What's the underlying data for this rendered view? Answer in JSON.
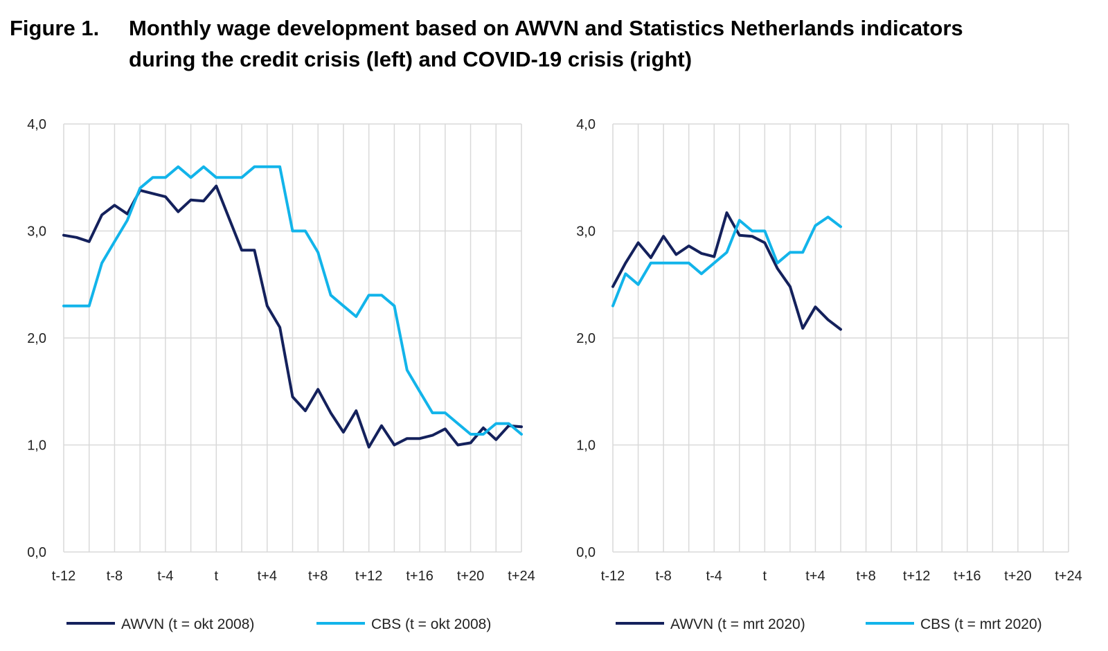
{
  "figure": {
    "label": "Figure 1.",
    "title_line1": "Monthly wage development based on AWVN and Statistics Netherlands indicators",
    "title_line2": "during the credit crisis (left) and COVID-19 crisis (right)"
  },
  "colors": {
    "awvn": "#14215c",
    "cbs": "#12b4ea",
    "grid": "#d9d9d9"
  },
  "chart_data": [
    {
      "type": "line",
      "title": "credit crisis",
      "ylim": [
        0,
        4
      ],
      "yticks": [
        "0,0",
        "1,0",
        "2,0",
        "3,0",
        "4,0"
      ],
      "xlim": [
        -12,
        24
      ],
      "xtick_labels": [
        "t-12",
        "t-8",
        "t-4",
        "t",
        "t+4",
        "t+8",
        "t+12",
        "t+16",
        "t+20",
        "t+24"
      ],
      "grid": true,
      "legend_position": "bottom",
      "series": [
        {
          "name": "AWVN (t = okt 2008)",
          "color": "#14215c",
          "x": [
            -12,
            -11,
            -10,
            -9,
            -8,
            -7,
            -6,
            -5,
            -4,
            -3,
            -2,
            -1,
            0,
            1,
            2,
            3,
            4,
            5,
            6,
            7,
            8,
            9,
            10,
            11,
            12,
            13,
            14,
            15,
            16,
            17,
            18,
            19,
            20,
            21,
            22,
            23,
            24
          ],
          "values": [
            2.96,
            2.94,
            2.9,
            3.15,
            3.24,
            3.16,
            3.38,
            3.35,
            3.32,
            3.18,
            3.29,
            3.28,
            3.42,
            3.12,
            2.82,
            2.82,
            2.3,
            2.1,
            1.45,
            1.32,
            1.52,
            1.3,
            1.12,
            1.32,
            0.98,
            1.18,
            1.0,
            1.06,
            1.06,
            1.09,
            1.15,
            1.0,
            1.02,
            1.16,
            1.05,
            1.18,
            1.17
          ]
        },
        {
          "name": "CBS (t = okt 2008)",
          "color": "#12b4ea",
          "x": [
            -12,
            -11,
            -10,
            -9,
            -8,
            -7,
            -6,
            -5,
            -4,
            -3,
            -2,
            -1,
            0,
            1,
            2,
            3,
            4,
            5,
            6,
            7,
            8,
            9,
            10,
            11,
            12,
            13,
            14,
            15,
            16,
            17,
            18,
            19,
            20,
            21,
            22,
            23,
            24
          ],
          "values": [
            2.3,
            2.3,
            2.3,
            2.7,
            2.9,
            3.1,
            3.4,
            3.5,
            3.5,
            3.6,
            3.5,
            3.6,
            3.5,
            3.5,
            3.5,
            3.6,
            3.6,
            3.6,
            3.0,
            3.0,
            2.8,
            2.4,
            2.3,
            2.2,
            2.4,
            2.4,
            2.3,
            1.7,
            1.5,
            1.3,
            1.3,
            1.2,
            1.1,
            1.1,
            1.2,
            1.2,
            1.1
          ]
        }
      ]
    },
    {
      "type": "line",
      "title": "COVID-19 crisis",
      "ylim": [
        0,
        4
      ],
      "yticks": [
        "0,0",
        "1,0",
        "2,0",
        "3,0",
        "4,0"
      ],
      "xlim": [
        -12,
        24
      ],
      "xtick_labels": [
        "t-12",
        "t-8",
        "t-4",
        "t",
        "t+4",
        "t+8",
        "t+12",
        "t+16",
        "t+20",
        "t+24"
      ],
      "grid": true,
      "legend_position": "bottom",
      "series": [
        {
          "name": "AWVN (t = mrt 2020)",
          "color": "#14215c",
          "x": [
            -12,
            -11,
            -10,
            -9,
            -8,
            -7,
            -6,
            -5,
            -4,
            -3,
            -2,
            -1,
            0,
            1,
            2,
            3,
            4,
            5,
            6
          ],
          "values": [
            2.48,
            2.7,
            2.89,
            2.75,
            2.95,
            2.78,
            2.86,
            2.79,
            2.76,
            3.17,
            2.96,
            2.95,
            2.89,
            2.65,
            2.48,
            2.09,
            2.29,
            2.17,
            2.08
          ]
        },
        {
          "name": "CBS (t = mrt 2020)",
          "color": "#12b4ea",
          "x": [
            -12,
            -11,
            -10,
            -9,
            -8,
            -7,
            -6,
            -5,
            -4,
            -3,
            -2,
            -1,
            0,
            1,
            2,
            3,
            4,
            5,
            6
          ],
          "values": [
            2.3,
            2.6,
            2.5,
            2.7,
            2.7,
            2.7,
            2.7,
            2.6,
            2.7,
            2.8,
            3.1,
            3.0,
            3.0,
            2.7,
            2.8,
            2.8,
            3.05,
            3.13,
            3.04
          ]
        }
      ]
    }
  ]
}
